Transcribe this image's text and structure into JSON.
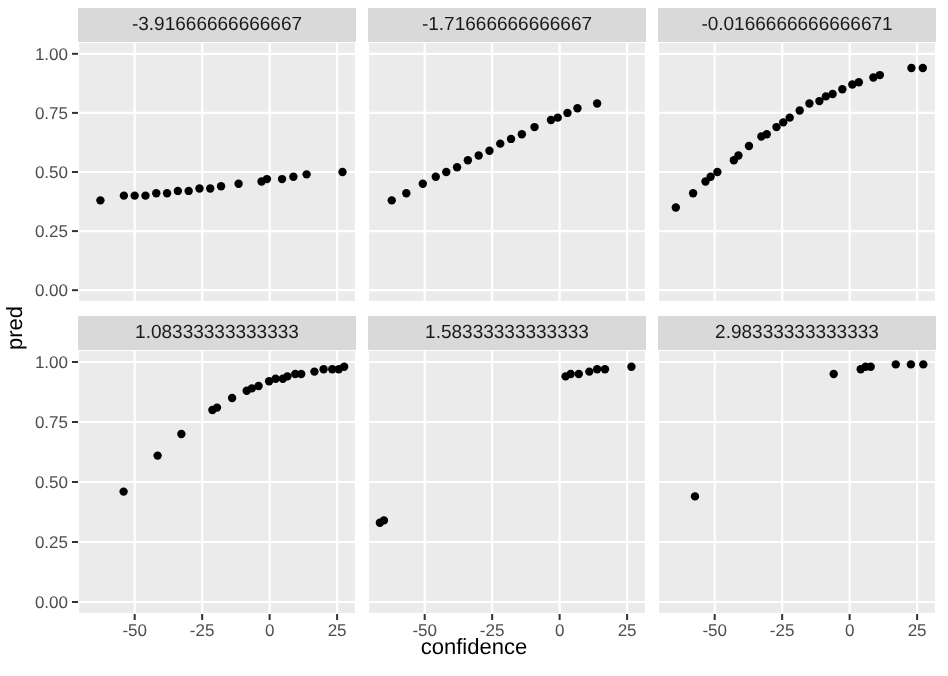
{
  "chart_data": [
    {
      "type": "scatter",
      "title": "-3.91666666666667",
      "xlim": [
        -71,
        32
      ],
      "ylim": [
        -0.05,
        1.05
      ],
      "xticks": [
        -50,
        -25,
        0,
        25
      ],
      "yticks": [
        {
          "value": 0,
          "label": "0.00"
        },
        {
          "value": 0.25,
          "label": "0.25"
        },
        {
          "value": 0.5,
          "label": "0.50"
        },
        {
          "value": 0.75,
          "label": "0.75"
        },
        {
          "value": 1,
          "label": "1.00"
        }
      ],
      "tick_labels": "y",
      "grid": true,
      "marker": "circle",
      "series": [
        {
          "color": "#000000",
          "x": [
            -62.7,
            -54,
            -50,
            -46,
            -42,
            -38,
            -34,
            -30,
            -26,
            -22,
            -18,
            -11.5,
            -3,
            -1,
            4.6,
            8.8,
            13.7,
            27
          ],
          "values": [
            0.38,
            0.4,
            0.4,
            0.4,
            0.41,
            0.41,
            0.42,
            0.42,
            0.43,
            0.43,
            0.44,
            0.45,
            0.46,
            0.47,
            0.47,
            0.48,
            0.49,
            0.5
          ]
        }
      ]
    },
    {
      "type": "scatter",
      "title": "-1.71666666666667",
      "xlim": [
        -71,
        32
      ],
      "ylim": [
        -0.05,
        1.05
      ],
      "xticks": [
        -50,
        -25,
        0,
        25
      ],
      "yticks": [
        0,
        0.25,
        0.5,
        0.75,
        1
      ],
      "tick_labels": false,
      "grid": true,
      "marker": "circle",
      "series": [
        {
          "color": "#000000",
          "x": [
            -62.2,
            -56.8,
            -50.7,
            -45.9,
            -42,
            -38,
            -34,
            -30,
            -26,
            -22,
            -18,
            -14,
            -9.3,
            -3.2,
            -0.7,
            2.9,
            6.6,
            13.9
          ],
          "values": [
            0.38,
            0.41,
            0.45,
            0.48,
            0.5,
            0.52,
            0.55,
            0.57,
            0.59,
            0.62,
            0.64,
            0.66,
            0.69,
            0.72,
            0.73,
            0.75,
            0.77,
            0.79
          ]
        }
      ]
    },
    {
      "type": "scatter",
      "title": "-0.0166666666666671",
      "xlim": [
        -71,
        32
      ],
      "ylim": [
        -0.05,
        1.05
      ],
      "xticks": [
        -50,
        -25,
        0,
        25
      ],
      "yticks": [
        0,
        0.25,
        0.5,
        0.75,
        1
      ],
      "tick_labels": false,
      "grid": true,
      "marker": "circle",
      "series": [
        {
          "color": "#000000",
          "x": [
            -64.4,
            -58,
            -53.4,
            -51.5,
            -49,
            -42.9,
            -41.2,
            -37.3,
            -32.7,
            -30.7,
            -27.1,
            -24.6,
            -22.2,
            -18.5,
            -14.9,
            -11.2,
            -8.8,
            -6.3,
            -2.7,
            1,
            3.4,
            8.8,
            11.2,
            22.9,
            27.1
          ],
          "values": [
            0.35,
            0.41,
            0.46,
            0.48,
            0.5,
            0.55,
            0.57,
            0.61,
            0.65,
            0.66,
            0.69,
            0.71,
            0.73,
            0.76,
            0.79,
            0.8,
            0.82,
            0.83,
            0.85,
            0.87,
            0.88,
            0.9,
            0.91,
            0.94,
            0.94
          ]
        }
      ]
    },
    {
      "type": "scatter",
      "title": "1.08333333333333",
      "ylabel": "pred",
      "xlim": [
        -71,
        32
      ],
      "ylim": [
        -0.05,
        1.05
      ],
      "xticks": [
        -50,
        -25,
        0,
        25
      ],
      "yticks": [
        {
          "value": 0,
          "label": "0.00"
        },
        {
          "value": 0.25,
          "label": "0.25"
        },
        {
          "value": 0.5,
          "label": "0.50"
        },
        {
          "value": 0.75,
          "label": "0.75"
        },
        {
          "value": 1,
          "label": "1.00"
        }
      ],
      "grid": true,
      "marker": "circle",
      "series": [
        {
          "color": "#000000",
          "x": [
            -54.1,
            -41.5,
            -32.7,
            -21.2,
            -19.5,
            -13.9,
            -8.5,
            -6.6,
            -4.1,
            -0.2,
            2.2,
            4.9,
            6.6,
            9.5,
            11.7,
            16.6,
            20,
            23.2,
            25.6,
            27.6
          ],
          "values": [
            0.46,
            0.61,
            0.7,
            0.8,
            0.81,
            0.85,
            0.88,
            0.89,
            0.9,
            0.92,
            0.93,
            0.93,
            0.94,
            0.95,
            0.95,
            0.96,
            0.97,
            0.97,
            0.97,
            0.98
          ]
        }
      ]
    },
    {
      "type": "scatter",
      "title": "1.58333333333333",
      "xlabel": "confidence",
      "xlim": [
        -71,
        32
      ],
      "ylim": [
        -0.05,
        1.05
      ],
      "xticks": [
        -50,
        -25,
        0,
        25
      ],
      "yticks": [
        0,
        0.25,
        0.5,
        0.75,
        1
      ],
      "tick_labels": "x",
      "grid": true,
      "marker": "circle",
      "series": [
        {
          "color": "#000000",
          "x": [
            -66.6,
            -65.1,
            2.2,
            4.1,
            7.1,
            11,
            13.9,
            16.8,
            26.6
          ],
          "values": [
            0.33,
            0.34,
            0.94,
            0.95,
            0.95,
            0.96,
            0.97,
            0.97,
            0.98
          ]
        }
      ]
    },
    {
      "type": "scatter",
      "title": "2.98333333333333",
      "xlim": [
        -71,
        32
      ],
      "ylim": [
        -0.05,
        1.05
      ],
      "xticks": [
        -50,
        -25,
        0,
        25
      ],
      "yticks": [
        0,
        0.25,
        0.5,
        0.75,
        1
      ],
      "tick_labels": "x",
      "grid": true,
      "marker": "circle",
      "series": [
        {
          "color": "#000000",
          "x": [
            -57.3,
            -5.9,
            4.1,
            5.9,
            7.8,
            17.1,
            22.7,
            27.3
          ],
          "values": [
            0.44,
            0.95,
            0.97,
            0.98,
            0.98,
            0.99,
            0.99,
            0.99
          ]
        }
      ]
    }
  ]
}
